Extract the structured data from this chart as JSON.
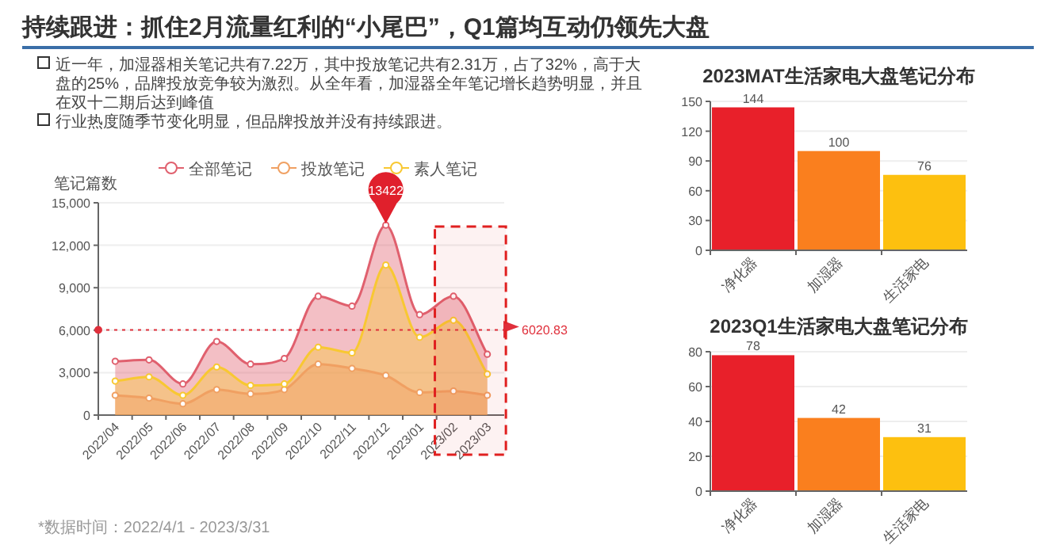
{
  "chart_data": [
    {
      "type": "area",
      "title": "持续跟进：抓住2月流量红利的“小尾巴”，Q1篇均互动仍领先大盘",
      "ylabel": "笔记篇数",
      "categories": [
        "2022/04",
        "2022/05",
        "2022/06",
        "2022/07",
        "2022/08",
        "2022/09",
        "2022/10",
        "2022/11",
        "2022/12",
        "2023/01",
        "2023/02",
        "2023/03"
      ],
      "series": [
        {
          "name": "全部笔记",
          "type": "area",
          "color": "#e0606e",
          "values": [
            3800,
            3900,
            2200,
            5200,
            3600,
            4000,
            8400,
            7700,
            13422,
            7100,
            8400,
            4300
          ]
        },
        {
          "name": "投放笔记",
          "type": "area",
          "color": "#f0a062",
          "values": [
            1400,
            1200,
            800,
            1800,
            1500,
            1800,
            3600,
            3300,
            2800,
            1600,
            1700,
            1400
          ]
        },
        {
          "name": "素人笔记",
          "type": "area",
          "color": "#f8c832",
          "values": [
            2400,
            2700,
            1400,
            3400,
            2100,
            2200,
            4800,
            4400,
            10600,
            5500,
            6700,
            2900
          ]
        }
      ],
      "ylim": [
        0,
        15000
      ],
      "yticks": [
        0,
        {
          "value": 3000,
          "label": "3,000"
        },
        {
          "value": 6000,
          "label": "6,000"
        },
        {
          "value": 9000,
          "label": "9,000"
        },
        {
          "value": 12000,
          "label": "12,000"
        },
        {
          "value": 15000,
          "label": "15,000"
        }
      ],
      "grid": "y",
      "legend": "top",
      "marker": "circle",
      "ref_lines": [
        {
          "axis": "y",
          "value": 6020.83,
          "label": "6020.83",
          "color": "#e0303c",
          "line_style": "dotted"
        }
      ],
      "bands": [
        {
          "axis": "x",
          "from": "2023/02",
          "to": "2023/03",
          "color": "#e02020"
        }
      ],
      "annotations": [
        "近一年，加湿器相关笔记共有7.22万，其中投放笔记共有2.31万，占了32%，高于大盘的25%，品牌投放竞争较为激烈。从全年看，加湿器全年笔记增长趋势明显，并且在双十二期后达到峰值",
        "行业热度随季节变化明显，但品牌投放并没有持续跟进。",
        {
          "text": "13422",
          "x": "2022/12",
          "y": 13422
        },
        "*数据时间：2022/4/1 - 2023/3/31"
      ]
    },
    {
      "type": "bar",
      "title": "2023MAT生活家电大盘笔记分布",
      "categories": [
        "净化器",
        "加湿器",
        "生活家电"
      ],
      "values": [
        144,
        100,
        76
      ],
      "colors": [
        "#e8202a",
        "#fa7f1e",
        "#fdc00f"
      ],
      "ylim": [
        0,
        150
      ],
      "yticks": [
        0,
        30,
        60,
        90,
        120,
        150
      ],
      "grid": "y",
      "data_labels": true
    },
    {
      "type": "bar",
      "title": "2023Q1生活家电大盘笔记分布",
      "categories": [
        "净化器",
        "加湿器",
        "生活家电"
      ],
      "values": [
        78,
        42,
        31
      ],
      "colors": [
        "#e8202a",
        "#fa7f1e",
        "#fdc00f"
      ],
      "ylim": [
        0,
        80
      ],
      "yticks": [
        0,
        20,
        40,
        60,
        80
      ],
      "grid": "y",
      "data_labels": true
    }
  ]
}
